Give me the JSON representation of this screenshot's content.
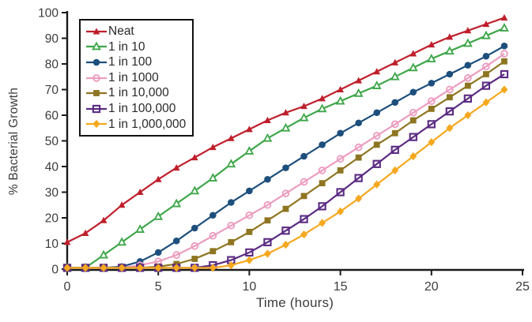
{
  "chart_data": {
    "type": "line",
    "title": "",
    "xlabel": "Time (hours)",
    "ylabel": "% Bacterial Growth",
    "xlim": [
      0,
      25
    ],
    "ylim": [
      0,
      100
    ],
    "x_ticks": [
      0,
      5,
      10,
      15,
      20,
      25
    ],
    "y_ticks": [
      0,
      10,
      20,
      30,
      40,
      50,
      60,
      70,
      80,
      90,
      100
    ],
    "grid": false,
    "legend_position": "top-left",
    "x_hours": [
      0,
      1,
      2,
      3,
      4,
      5,
      6,
      7,
      8,
      9,
      10,
      11,
      12,
      13,
      14,
      15,
      16,
      17,
      18,
      19,
      20,
      21,
      22,
      23,
      24
    ],
    "series": [
      {
        "name": "Neat",
        "color": "#bf1f2c",
        "marker": "triangle-filled",
        "values": [
          10.5,
          14,
          19,
          25,
          30,
          35,
          39.5,
          43.5,
          47.5,
          51,
          54.5,
          58,
          61,
          63.5,
          66.5,
          70,
          73.5,
          77,
          80.5,
          84,
          87.5,
          90.5,
          93,
          95.5,
          98
        ]
      },
      {
        "name": "1 in 10",
        "color": "#3ea649",
        "marker": "triangle-open",
        "values": [
          0.5,
          0.5,
          5.5,
          10.5,
          15.5,
          20.5,
          25.5,
          30.5,
          35.5,
          41,
          46,
          51,
          55,
          59,
          62.5,
          65.5,
          68.5,
          71.5,
          75,
          78.5,
          82,
          85,
          88,
          91,
          94
        ]
      },
      {
        "name": "1 in 100",
        "color": "#1d4f7c",
        "marker": "circle-filled",
        "values": [
          0.5,
          0.5,
          0.5,
          1,
          3,
          6.5,
          11,
          16,
          21,
          26,
          30.5,
          35,
          39.5,
          44,
          48.5,
          53,
          57,
          61,
          65,
          69,
          72.5,
          76,
          79.5,
          83,
          87
        ]
      },
      {
        "name": "1 in 1000",
        "color": "#ec9dc0",
        "marker": "circle-open",
        "values": [
          0.5,
          0.5,
          0.5,
          0.5,
          1.5,
          3,
          5.5,
          9,
          13,
          17,
          21,
          25,
          29.5,
          34,
          38.5,
          43,
          47.5,
          52,
          56.5,
          61,
          65.5,
          70,
          74.5,
          79,
          84
        ]
      },
      {
        "name": "1 in 10,000",
        "color": "#8e7521",
        "marker": "square-filled",
        "values": [
          0.5,
          0.5,
          0.5,
          0.5,
          0.5,
          1,
          2,
          4,
          7,
          10.5,
          14.5,
          19,
          23.5,
          28.5,
          33.5,
          38.5,
          43.5,
          48.5,
          53,
          58,
          62.5,
          67,
          71.5,
          76,
          81
        ]
      },
      {
        "name": "1 in 100,000",
        "color": "#5b2b82",
        "marker": "square-open",
        "values": [
          0.5,
          0.5,
          0.5,
          0.5,
          0.5,
          0.5,
          0.5,
          0.5,
          1.5,
          3.5,
          6.5,
          10.5,
          15,
          19.5,
          24.5,
          30,
          35.5,
          41,
          46.5,
          51.5,
          56.5,
          61.5,
          66.5,
          71.5,
          76
        ]
      },
      {
        "name": "1 in 1,000,000",
        "color": "#f5a81f",
        "marker": "diamond-filled",
        "values": [
          0.5,
          0.5,
          0.5,
          0.5,
          0.5,
          0.5,
          0.5,
          0.5,
          0.5,
          1.5,
          3.5,
          6,
          9.5,
          13.5,
          18,
          22.5,
          27.5,
          33,
          38.5,
          44,
          49.5,
          55,
          60,
          65,
          70
        ]
      }
    ],
    "style": {
      "axis_color": "#1a1a1a",
      "tick_label_color": "#3c3c3c",
      "background": "#ffffff"
    }
  }
}
